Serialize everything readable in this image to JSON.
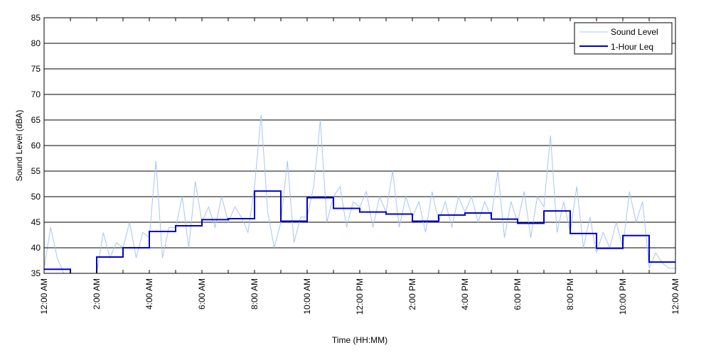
{
  "chart_data": {
    "type": "line",
    "title": "",
    "xlabel": "Time (HH:MM)",
    "ylabel": "Sound Level (dBA)",
    "xlim": [
      0,
      24
    ],
    "ylim": [
      35,
      85
    ],
    "grid": "horizontal",
    "legend_position": "top-right",
    "x_tick_labels": [
      "12:00 AM",
      "2:00 AM",
      "4:00 AM",
      "6:00 AM",
      "8:00 AM",
      "10:00 AM",
      "12:00 PM",
      "2:00 PM",
      "4:00 PM",
      "6:00 PM",
      "8:00 PM",
      "10:00 PM",
      "12:00 AM"
    ],
    "y_ticks": [
      35,
      40,
      45,
      50,
      55,
      60,
      65,
      70,
      75,
      80,
      85
    ],
    "series": [
      {
        "name": "Sound Level",
        "color": "#a8c4f4",
        "style": "thin",
        "x": [
          0,
          0.25,
          0.5,
          0.75,
          1,
          1.25,
          1.5,
          1.75,
          2,
          2.25,
          2.5,
          2.75,
          3,
          3.25,
          3.5,
          3.75,
          4,
          4.25,
          4.5,
          4.75,
          5,
          5.25,
          5.5,
          5.75,
          6,
          6.25,
          6.5,
          6.75,
          7,
          7.25,
          7.5,
          7.75,
          8,
          8.25,
          8.5,
          8.75,
          9,
          9.25,
          9.5,
          9.75,
          10,
          10.25,
          10.5,
          10.75,
          11,
          11.25,
          11.5,
          11.75,
          12,
          12.25,
          12.5,
          12.75,
          13,
          13.25,
          13.5,
          13.75,
          14,
          14.25,
          14.5,
          14.75,
          15,
          15.25,
          15.5,
          15.75,
          16,
          16.25,
          16.5,
          16.75,
          17,
          17.25,
          17.5,
          17.75,
          18,
          18.25,
          18.5,
          18.75,
          19,
          19.25,
          19.5,
          19.75,
          20,
          20.25,
          20.5,
          20.75,
          21,
          21.25,
          21.5,
          21.75,
          22,
          22.25,
          22.5,
          22.75,
          23,
          23.25,
          23.5,
          23.75,
          24
        ],
        "y": [
          36,
          44,
          38,
          35,
          35,
          35,
          35,
          35,
          35,
          43,
          38,
          41,
          40,
          45,
          38,
          43,
          42,
          57,
          38,
          44,
          44,
          50,
          40,
          53,
          45,
          48,
          44,
          50,
          45,
          48,
          46,
          43,
          52,
          66,
          47,
          40,
          45,
          57,
          41,
          46,
          46,
          52,
          65,
          45,
          50,
          52,
          44,
          49,
          48,
          51,
          44,
          50,
          47,
          55,
          44,
          50,
          46,
          49,
          43,
          51,
          45,
          49,
          44,
          50,
          47,
          50,
          45,
          49,
          46,
          55,
          42,
          49,
          45,
          51,
          42,
          50,
          48,
          62,
          43,
          49,
          43,
          52,
          40,
          46,
          39,
          43,
          40,
          45,
          40,
          51,
          45,
          49,
          36,
          39,
          37,
          36,
          36
        ]
      },
      {
        "name": "1-Hour Leq",
        "color": "#0000cc",
        "style": "step",
        "x": [
          0,
          1,
          2,
          3,
          4,
          5,
          6,
          7,
          8,
          9,
          10,
          11,
          12,
          13,
          14,
          15,
          16,
          17,
          18,
          19,
          20,
          21,
          22,
          23
        ],
        "y": [
          35.8,
          30.0,
          38.2,
          40.0,
          43.2,
          44.3,
          45.5,
          45.7,
          51.1,
          45.2,
          49.8,
          47.7,
          47.0,
          46.6,
          45.2,
          46.4,
          46.8,
          45.6,
          44.8,
          47.2,
          42.8,
          39.9,
          42.4,
          37.2
        ]
      }
    ]
  }
}
